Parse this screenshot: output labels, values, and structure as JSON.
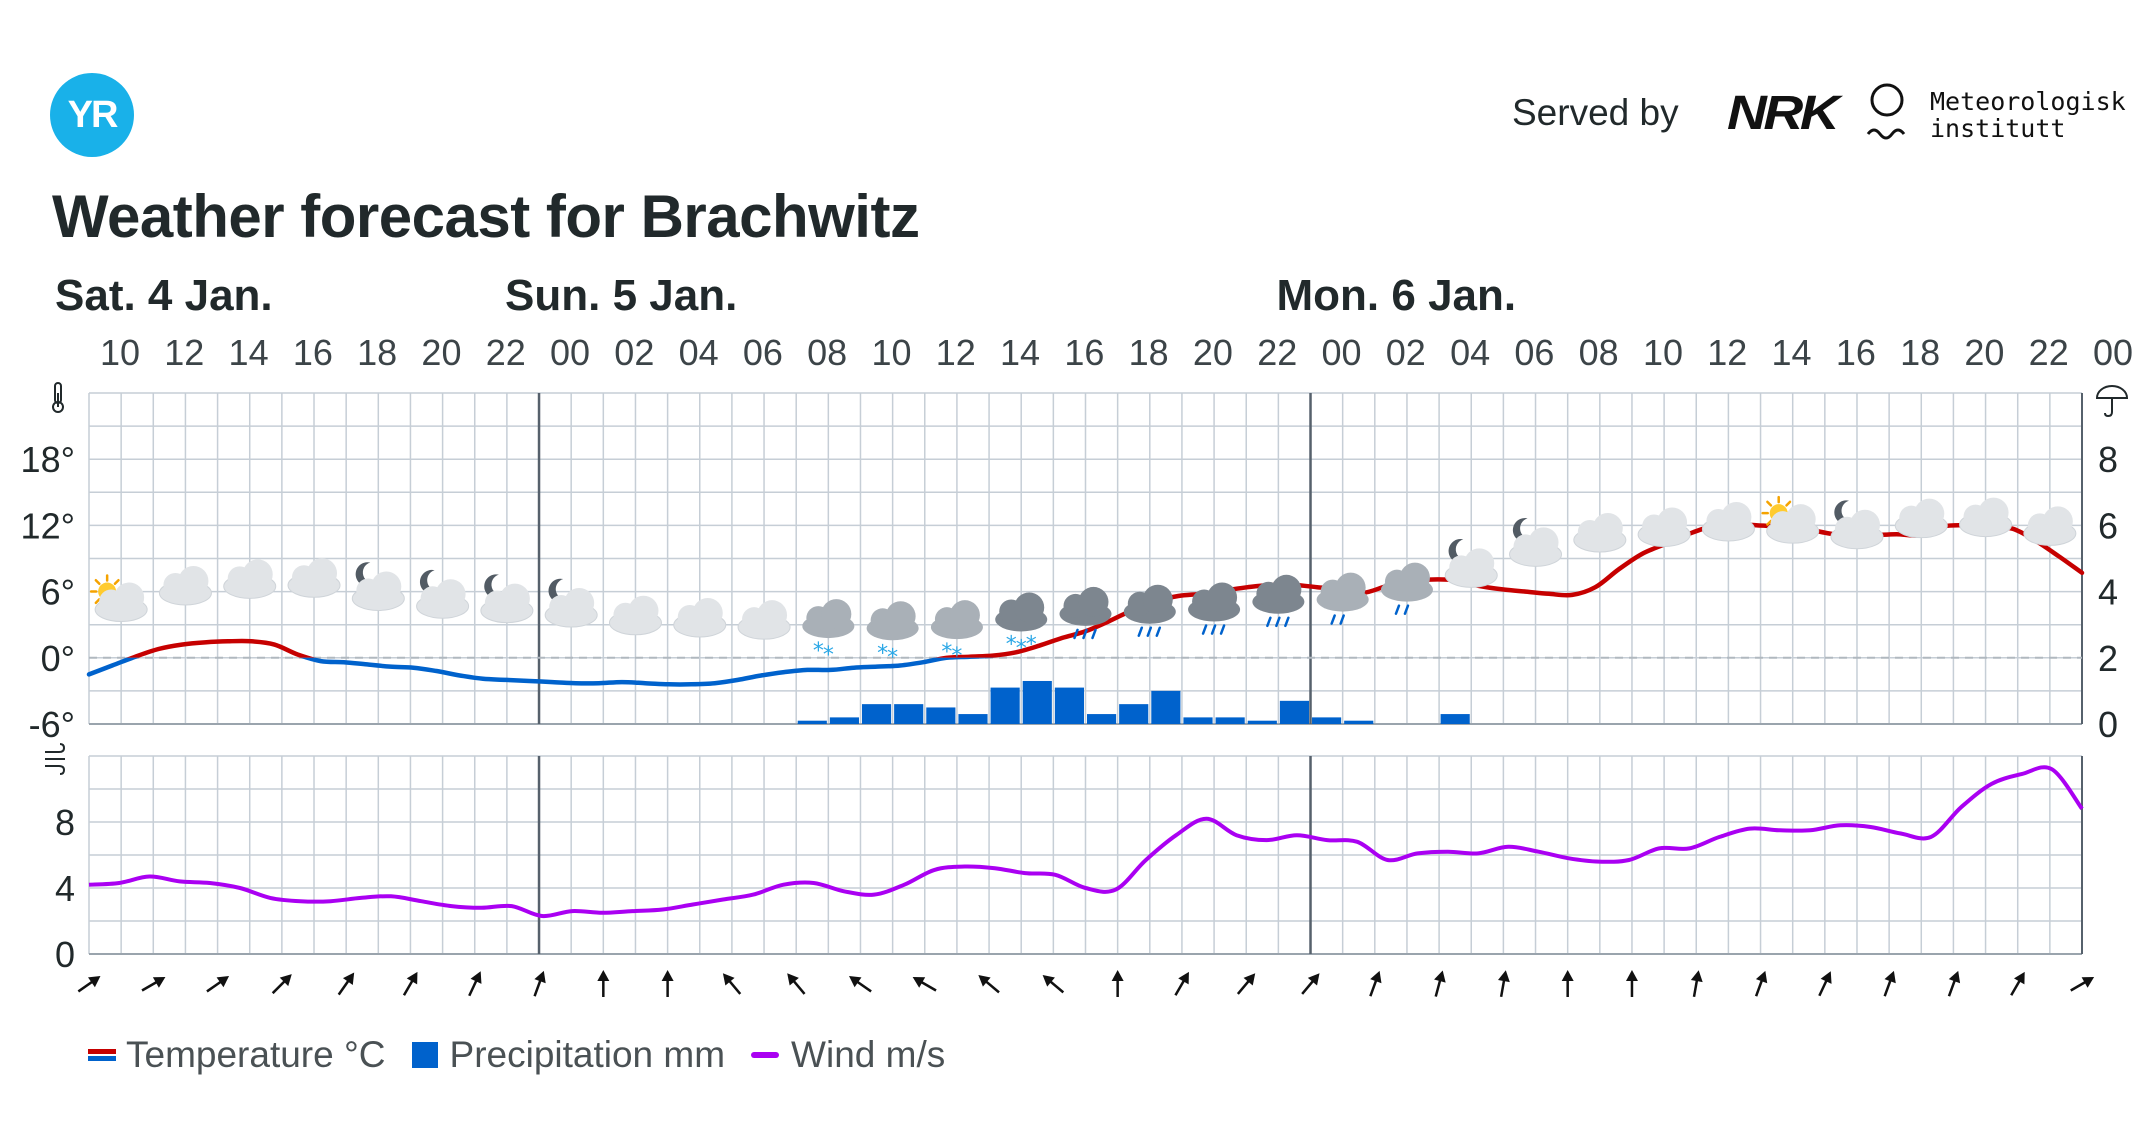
{
  "header": {
    "logo_text": "YR",
    "served_by": "Served by",
    "nrk_logo": "NRK",
    "met_line1": "Meteorologisk",
    "met_line2": "institutt"
  },
  "title": "Weather forecast for Brachwitz",
  "colors": {
    "temp_warm": "#c60000",
    "temp_cold": "#0062cc",
    "precip": "#0062cc",
    "wind": "#aa00f2",
    "grid": "#c6ced6",
    "day_divider": "#56616c"
  },
  "legend": {
    "temperature": "Temperature °C",
    "precipitation": "Precipitation mm",
    "wind": "Wind m/s"
  },
  "chart_data": {
    "type": "line",
    "days": [
      {
        "label": "Sat. 4 Jan.",
        "start_hour": "10"
      },
      {
        "label": "Sun. 5 Jan.",
        "start_hour": "00"
      },
      {
        "label": "Mon. 6 Jan.",
        "start_hour": "00"
      }
    ],
    "hour_labels": [
      "10",
      "12",
      "14",
      "16",
      "18",
      "20",
      "22",
      "00",
      "02",
      "04",
      "06",
      "08",
      "10",
      "12",
      "14",
      "16",
      "18",
      "20",
      "22",
      "00",
      "02",
      "04",
      "06",
      "08",
      "10",
      "12",
      "14",
      "16",
      "18",
      "20",
      "22",
      "00"
    ],
    "temperature_axis": {
      "ticks": [
        "18°",
        "12°",
        "6°",
        "0°",
        "-6°"
      ],
      "ylim": [
        -6,
        24
      ]
    },
    "precipitation_axis": {
      "ticks": [
        "8",
        "6",
        "4",
        "2",
        "0"
      ],
      "ylim": [
        0,
        10
      ]
    },
    "wind_axis": {
      "ticks": [
        "8",
        "4",
        "0"
      ],
      "ylim": [
        0,
        12
      ]
    },
    "temperature": {
      "name": "Temperature °C",
      "start": "Sat 10:00",
      "step_hours": 1,
      "values": [
        -1.5,
        -0.7,
        0.1,
        0.8,
        1.2,
        1.4,
        1.5,
        1.5,
        1.2,
        0.3,
        -0.3,
        -0.4,
        -0.6,
        -0.8,
        -0.9,
        -1.2,
        -1.6,
        -1.9,
        -2.0,
        -2.1,
        -2.2,
        -2.3,
        -2.3,
        -2.2,
        -2.3,
        -2.4,
        -2.4,
        -2.3,
        -2.0,
        -1.6,
        -1.3,
        -1.1,
        -1.1,
        -0.9,
        -0.8,
        -0.7,
        -0.4,
        0.0,
        0.1,
        0.2,
        0.5,
        1.1,
        1.8,
        2.4,
        3.3,
        4.3,
        5.1,
        5.6,
        5.8,
        6.1,
        6.4,
        6.6,
        6.6,
        6.4,
        6.2,
        5.9,
        6.5,
        6.9,
        7.1,
        7.0,
        6.5,
        6.2,
        6.0,
        5.8,
        5.7,
        6.4,
        8.0,
        9.4,
        10.3,
        11.2,
        11.9,
        12.1,
        12.0,
        11.9,
        11.7,
        11.3,
        11.0,
        11.1,
        11.2,
        11.1,
        11.9,
        12.0,
        11.8,
        11.7,
        10.6,
        9.2,
        7.7
      ]
    },
    "precipitation": {
      "name": "Precipitation mm",
      "unit": "mm",
      "bars_start": "Sun 08:00",
      "step_hours": 1,
      "values": [
        0.1,
        0.2,
        0.6,
        0.6,
        0.5,
        0.3,
        1.1,
        1.3,
        1.1,
        0.3,
        0.6,
        1.0,
        0.2,
        0.2,
        0.1,
        0.7,
        0.2,
        0.1,
        0,
        0,
        0.3
      ]
    },
    "wind": {
      "name": "Wind m/s",
      "start": "Sat 10:00",
      "step_hours": 1,
      "values": [
        4.2,
        4.3,
        4.7,
        4.4,
        4.3,
        4.0,
        3.4,
        3.2,
        3.2,
        3.4,
        3.5,
        3.2,
        2.9,
        2.8,
        2.9,
        2.3,
        2.6,
        2.5,
        2.6,
        2.7,
        3.0,
        3.3,
        3.6,
        4.2,
        4.3,
        3.8,
        3.6,
        4.2,
        5.1,
        5.3,
        5.2,
        4.9,
        4.8,
        4.0,
        3.9,
        5.7,
        7.2,
        8.2,
        7.2,
        6.9,
        7.2,
        6.9,
        6.8,
        5.7,
        6.1,
        6.2,
        6.1,
        6.5,
        6.2,
        5.8,
        5.6,
        5.7,
        6.4,
        6.4,
        7.1,
        7.6,
        7.5,
        7.5,
        7.8,
        7.7,
        7.3,
        7.1,
        8.9,
        10.3,
        10.9,
        11.2,
        8.8
      ]
    },
    "symbols": {
      "step_hours": 2,
      "start": "Sat 10:00",
      "icons": [
        "fair-day",
        "cloudy",
        "cloudy",
        "cloudy",
        "partlycloudy-night",
        "partlycloudy-night",
        "partlycloudy-night",
        "partlycloudy-night",
        "cloudy",
        "cloudy",
        "cloudy",
        "lightsnow",
        "lightsnow",
        "lightsnow",
        "snow",
        "rain",
        "rain",
        "rain",
        "rain",
        "lightrain",
        "lightrain",
        "partlycloudy-night",
        "partlycloudy-night",
        "cloudy",
        "cloudy",
        "cloudy",
        "fair-day",
        "partlycloudy-night",
        "cloudy",
        "cloudy",
        "cloudy"
      ]
    },
    "wind_directions_deg": [
      55,
      60,
      55,
      45,
      35,
      30,
      25,
      20,
      0,
      0,
      -40,
      -40,
      -55,
      -60,
      -50,
      -50,
      0,
      30,
      40,
      40,
      20,
      15,
      10,
      0,
      0,
      10,
      20,
      25,
      20,
      20,
      30,
      60
    ],
    "grid": true
  }
}
